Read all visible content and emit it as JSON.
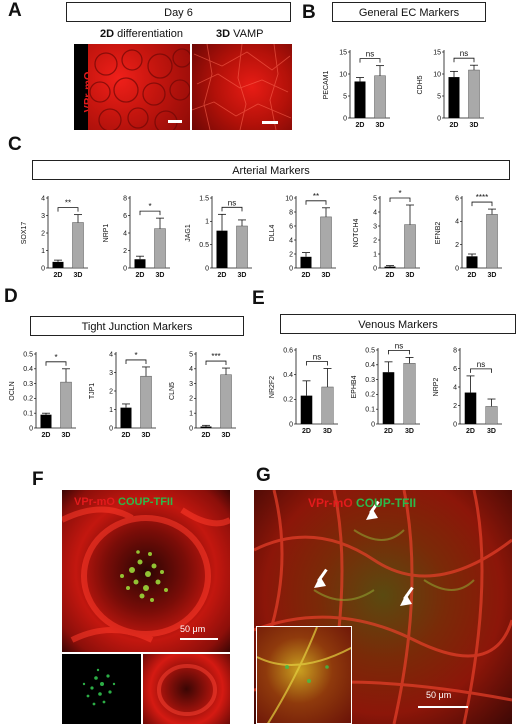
{
  "panels": {
    "A": {
      "letter": "A",
      "title": "Day 6",
      "label_2d_bold": "2D",
      "label_2d_rest": " differentiation",
      "label_3d_bold": "3D",
      "label_3d_rest": " VAMP",
      "side_label": "VPr-mO"
    },
    "B": {
      "letter": "B",
      "title": "General EC Markers"
    },
    "C": {
      "letter": "C",
      "title": "Arterial Markers"
    },
    "D": {
      "letter": "D",
      "title": "Tight Junction Markers"
    },
    "E": {
      "letter": "E",
      "title": "Venous Markers"
    },
    "F": {
      "letter": "F",
      "red_label": "VPr-mO",
      "green_label": "COUP-TFII",
      "scale": "50 μm"
    },
    "G": {
      "letter": "G",
      "red_label": "VPr-mO",
      "green_label": "COUP-TFII",
      "scale": "50 μm"
    }
  },
  "colors": {
    "red": "#e31a1c",
    "green": "#2db84a",
    "bar_2d": "#000000",
    "bar_3d": "#a9a9a9"
  },
  "chart_data": [
    {
      "type": "bar",
      "panel": "B",
      "ylabel": "PECAM1",
      "categories": [
        "2D",
        "3D"
      ],
      "values": [
        8.3,
        9.6
      ],
      "errors": [
        0.9,
        2.3
      ],
      "ylim": [
        0,
        15
      ],
      "yticks": [
        0,
        5,
        10,
        15
      ],
      "sig": "ns"
    },
    {
      "type": "bar",
      "panel": "B",
      "ylabel": "CDH5",
      "categories": [
        "2D",
        "3D"
      ],
      "values": [
        9.3,
        10.9
      ],
      "errors": [
        1.3,
        1.1
      ],
      "ylim": [
        0,
        15
      ],
      "yticks": [
        0,
        5,
        10,
        15
      ],
      "sig": "ns"
    },
    {
      "type": "bar",
      "panel": "C",
      "ylabel": "SOX17",
      "categories": [
        "2D",
        "3D"
      ],
      "values": [
        0.35,
        2.6
      ],
      "errors": [
        0.1,
        0.45
      ],
      "ylim": [
        0,
        4
      ],
      "yticks": [
        0,
        1,
        2,
        3,
        4
      ],
      "sig": "**"
    },
    {
      "type": "bar",
      "panel": "C",
      "ylabel": "NRP1",
      "categories": [
        "2D",
        "3D"
      ],
      "values": [
        1.0,
        4.5
      ],
      "errors": [
        0.35,
        1.2
      ],
      "ylim": [
        0,
        8
      ],
      "yticks": [
        0,
        2,
        4,
        6,
        8
      ],
      "sig": "*"
    },
    {
      "type": "bar",
      "panel": "C",
      "ylabel": "JAG1",
      "categories": [
        "2D",
        "3D"
      ],
      "values": [
        0.8,
        0.9
      ],
      "errors": [
        0.35,
        0.13
      ],
      "ylim": [
        0,
        1.5
      ],
      "yticks": [
        0,
        0.5,
        1,
        1.5
      ],
      "sig": "ns"
    },
    {
      "type": "bar",
      "panel": "C",
      "ylabel": "DLL4",
      "categories": [
        "2D",
        "3D"
      ],
      "values": [
        1.6,
        7.3
      ],
      "errors": [
        0.6,
        1.3
      ],
      "ylim": [
        0,
        10
      ],
      "yticks": [
        0,
        2,
        4,
        6,
        8,
        10
      ],
      "sig": "**"
    },
    {
      "type": "bar",
      "panel": "C",
      "ylabel": "NOTCH4",
      "categories": [
        "2D",
        "3D"
      ],
      "values": [
        0.1,
        3.1
      ],
      "errors": [
        0.07,
        1.4
      ],
      "ylim": [
        0,
        5
      ],
      "yticks": [
        0,
        1,
        2,
        3,
        4,
        5
      ],
      "sig": "*"
    },
    {
      "type": "bar",
      "panel": "C",
      "ylabel": "EFNB2",
      "categories": [
        "2D",
        "3D"
      ],
      "values": [
        1.0,
        4.6
      ],
      "errors": [
        0.2,
        0.45
      ],
      "ylim": [
        0,
        6
      ],
      "yticks": [
        0,
        2,
        4,
        6
      ],
      "sig": "****"
    },
    {
      "type": "bar",
      "panel": "D",
      "ylabel": "OCLN",
      "categories": [
        "2D",
        "3D"
      ],
      "values": [
        0.09,
        0.31
      ],
      "errors": [
        0.01,
        0.09
      ],
      "ylim": [
        0,
        0.5
      ],
      "yticks": [
        0,
        0.1,
        0.2,
        0.3,
        0.4,
        0.5
      ],
      "sig": "*"
    },
    {
      "type": "bar",
      "panel": "D",
      "ylabel": "TJP1",
      "categories": [
        "2D",
        "3D"
      ],
      "values": [
        1.1,
        2.8
      ],
      "errors": [
        0.2,
        0.5
      ],
      "ylim": [
        0,
        4
      ],
      "yticks": [
        0,
        1,
        2,
        3,
        4
      ],
      "sig": "*"
    },
    {
      "type": "bar",
      "panel": "D",
      "ylabel": "CLN5",
      "categories": [
        "2D",
        "3D"
      ],
      "values": [
        0.1,
        3.6
      ],
      "errors": [
        0.08,
        0.45
      ],
      "ylim": [
        0,
        5
      ],
      "yticks": [
        0,
        1,
        2,
        3,
        4,
        5
      ],
      "sig": "***"
    },
    {
      "type": "bar",
      "panel": "E",
      "ylabel": "NR2F2",
      "categories": [
        "2D",
        "3D"
      ],
      "values": [
        0.23,
        0.3
      ],
      "errors": [
        0.12,
        0.15
      ],
      "ylim": [
        0,
        0.6
      ],
      "yticks": [
        0,
        0.2,
        0.4,
        0.6
      ],
      "sig": "ns"
    },
    {
      "type": "bar",
      "panel": "E",
      "ylabel": "EPHB4",
      "categories": [
        "2D",
        "3D"
      ],
      "values": [
        0.35,
        0.41
      ],
      "errors": [
        0.07,
        0.04
      ],
      "ylim": [
        0,
        0.5
      ],
      "yticks": [
        0,
        0.1,
        0.2,
        0.3,
        0.4,
        0.5
      ],
      "sig": "ns"
    },
    {
      "type": "bar",
      "panel": "E",
      "ylabel": "NRP2",
      "categories": [
        "2D",
        "3D"
      ],
      "values": [
        3.4,
        1.9
      ],
      "errors": [
        1.8,
        0.8
      ],
      "ylim": [
        0,
        8
      ],
      "yticks": [
        0,
        2,
        4,
        6,
        8
      ],
      "sig": "ns"
    }
  ]
}
